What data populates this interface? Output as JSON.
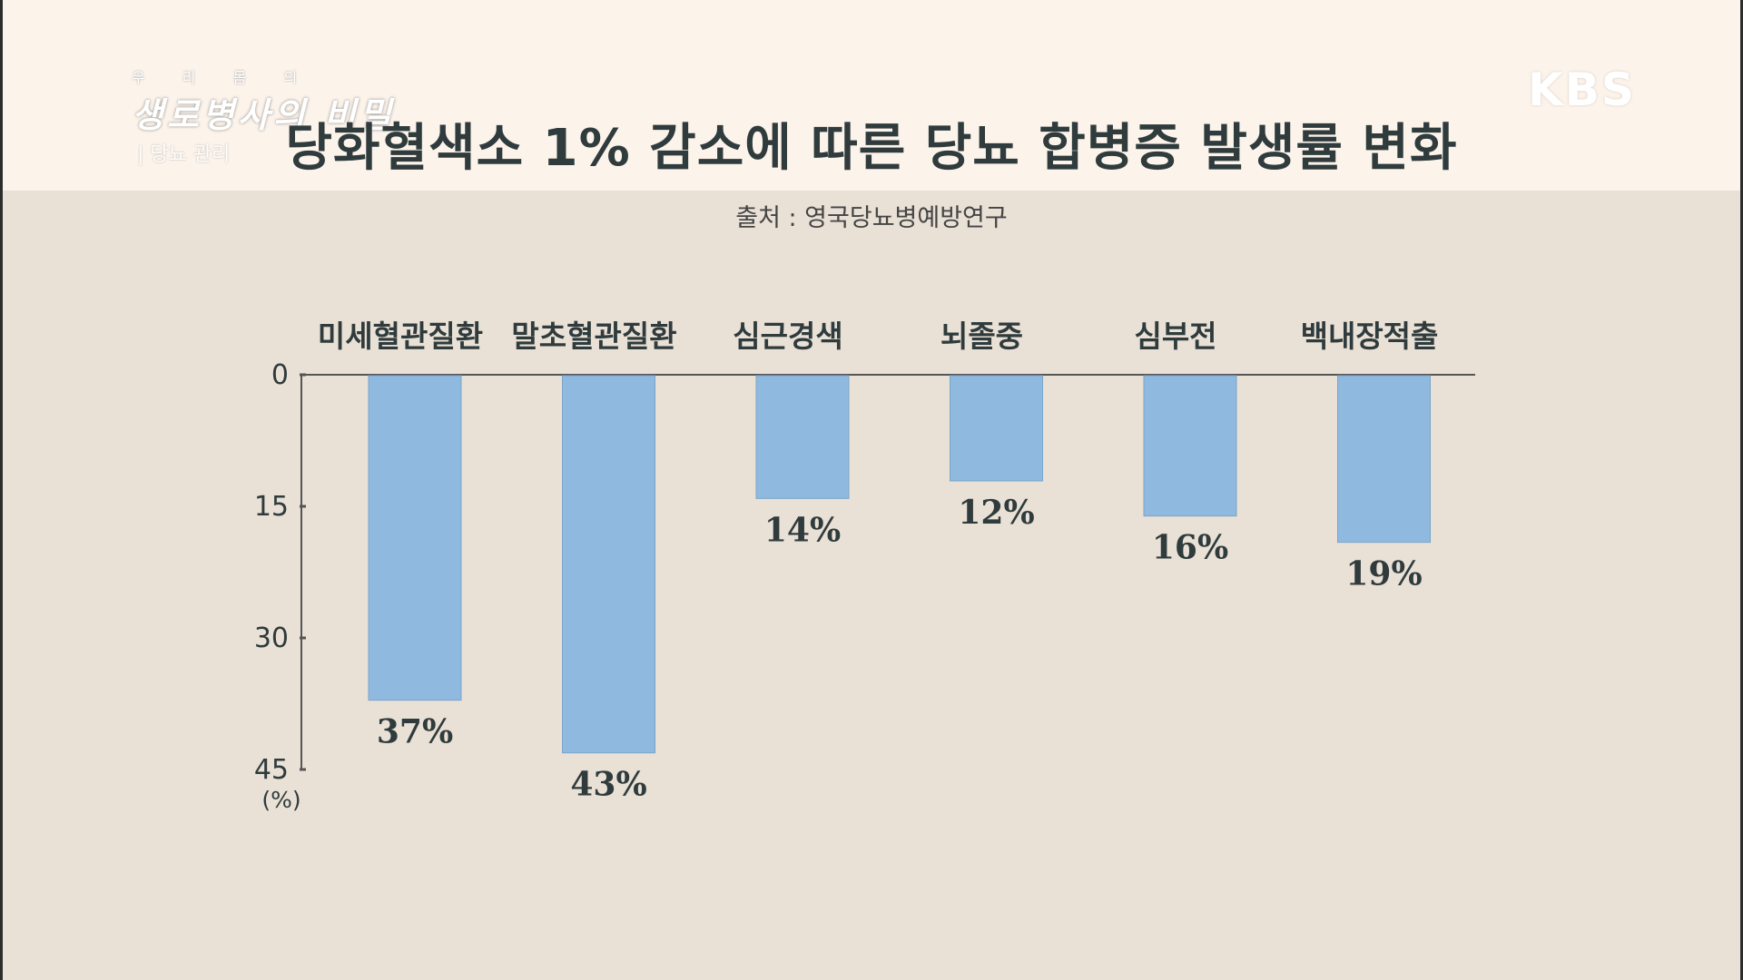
{
  "title": "당화혈색소 1% 감소에 따른 당뇨 합병증 발생률 변화",
  "source": "출처 : 영국당뇨병예방연구",
  "broadcaster": "KBS",
  "program": {
    "subtitle": "우 리 몸 의",
    "name": "생로병사의 비밀",
    "episode": "| 당뇨 관리"
  },
  "colors": {
    "bar": "#8fb9de",
    "bar_stroke": "#7aa6cc",
    "axis": "#555555",
    "text": "#2f3b3c"
  },
  "chart_data": {
    "type": "bar",
    "orientation": "vertical-inverted",
    "categories": [
      "미세혈관질환",
      "말초혈관질환",
      "심근경색",
      "뇌졸중",
      "심부전",
      "백내장적출"
    ],
    "values": [
      37,
      43,
      14,
      12,
      16,
      19
    ],
    "value_labels": [
      "37%",
      "43%",
      "14%",
      "12%",
      "16%",
      "19%"
    ],
    "ylim": [
      0,
      45
    ],
    "yticks": [
      0,
      15,
      30,
      45
    ],
    "yunit": "(%)",
    "grid": false,
    "legend": "none"
  }
}
